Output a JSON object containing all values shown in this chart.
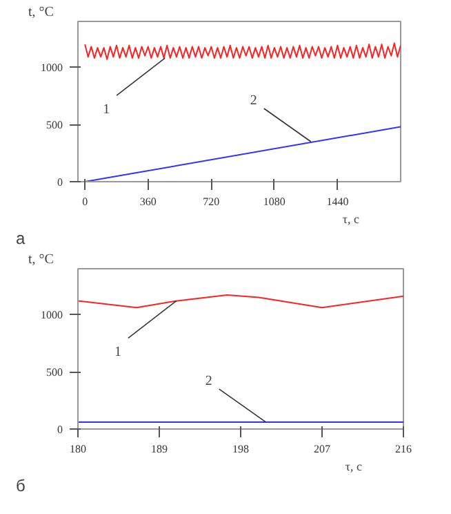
{
  "chart_data": [
    {
      "type": "line",
      "xlabel": "τ, с",
      "ylabel": "t, °C",
      "xlim": [
        -40,
        1800
      ],
      "ylim": [
        0,
        1400
      ],
      "xticks": [
        0,
        360,
        720,
        1080,
        1440
      ],
      "yticks": [
        0,
        500,
        1000
      ],
      "series": [
        {
          "color": "#ff2020",
          "x": [
            0,
            18,
            36,
            54,
            72,
            90,
            108,
            126,
            144,
            162,
            180,
            198,
            216,
            234,
            252,
            270,
            288,
            306,
            324,
            342,
            360,
            378,
            396,
            414,
            432,
            450,
            468,
            486,
            504,
            522,
            540,
            558,
            576,
            594,
            612,
            630,
            648,
            666,
            684,
            702,
            720,
            738,
            756,
            774,
            792,
            810,
            828,
            846,
            864,
            882,
            900,
            918,
            936,
            954,
            972,
            990,
            1008,
            1026,
            1044,
            1062,
            1080,
            1098,
            1116,
            1134,
            1152,
            1170,
            1188,
            1206,
            1224,
            1242,
            1260,
            1278,
            1296,
            1314,
            1332,
            1350,
            1368,
            1386,
            1404,
            1422,
            1440,
            1458,
            1476,
            1494,
            1512,
            1530,
            1548,
            1566,
            1584,
            1602,
            1620,
            1638,
            1656,
            1674,
            1692,
            1710,
            1728,
            1746,
            1764,
            1782,
            1800
          ],
          "values": [
            1200,
            1090,
            1180,
            1080,
            1170,
            1090,
            1170,
            1070,
            1180,
            1090,
            1190,
            1080,
            1170,
            1090,
            1190,
            1080,
            1170,
            1080,
            1180,
            1100,
            1180,
            1080,
            1170,
            1090,
            1180,
            1080,
            1190,
            1080,
            1170,
            1090,
            1180,
            1080,
            1170,
            1080,
            1180,
            1090,
            1180,
            1080,
            1170,
            1100,
            1180,
            1080,
            1170,
            1080,
            1180,
            1090,
            1190,
            1080,
            1170,
            1080,
            1180,
            1100,
            1180,
            1080,
            1170,
            1090,
            1180,
            1080,
            1190,
            1080,
            1170,
            1090,
            1180,
            1080,
            1170,
            1080,
            1180,
            1090,
            1190,
            1080,
            1170,
            1080,
            1180,
            1100,
            1180,
            1080,
            1170,
            1090,
            1180,
            1080,
            1190,
            1080,
            1170,
            1090,
            1180,
            1080,
            1190,
            1080,
            1170,
            1090,
            1200,
            1080,
            1180,
            1090,
            1200,
            1080,
            1180,
            1100,
            1210,
            1090,
            1190
          ]
        },
        {
          "color": "#3030ff",
          "x": [
            0,
            1800
          ],
          "values": [
            0,
            480
          ]
        }
      ],
      "annotations": [
        {
          "text": "1",
          "x": 456,
          "y": 1080
        },
        {
          "text": "2",
          "x": 1288,
          "y": 350
        },
        "а"
      ]
    },
    {
      "type": "line",
      "xlabel": "τ, с",
      "ylabel": "t, °C",
      "xlim": [
        180,
        216
      ],
      "ylim": [
        0,
        1400
      ],
      "xticks": [
        180,
        189,
        198,
        207,
        216
      ],
      "yticks": [
        0,
        500,
        1000
      ],
      "series": [
        {
          "color": "#ff2020",
          "x": [
            180,
            186.5,
            191,
            196.5,
            200,
            207,
            216
          ],
          "values": [
            1120,
            1060,
            1120,
            1170,
            1150,
            1060,
            1160
          ]
        },
        {
          "color": "#3030ff",
          "x": [
            180,
            216
          ],
          "values": [
            60,
            60
          ]
        }
      ],
      "annotations": [
        {
          "text": "1",
          "x": 190.9,
          "y": 1120
        },
        {
          "text": "2",
          "x": 200.8,
          "y": 60
        },
        "б"
      ]
    }
  ]
}
